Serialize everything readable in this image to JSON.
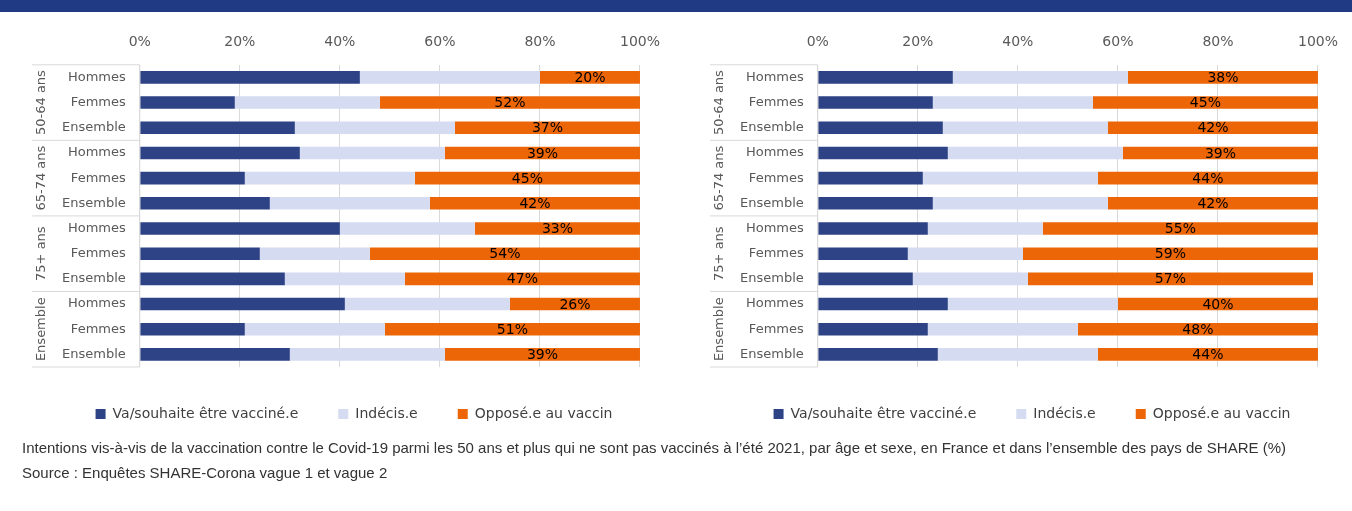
{
  "chart_data": [
    {
      "type": "bar",
      "orientation": "horizontal",
      "stacked": true,
      "grid": "x",
      "legend": "bottom",
      "categories": [
        "Hommes",
        "Femmes",
        "Ensemble",
        "Hommes",
        "Femmes",
        "Ensemble",
        "Hommes",
        "Femmes",
        "Ensemble",
        "Hommes",
        "Femmes",
        "Ensemble"
      ],
      "annotations": [
        "50-64 ans",
        "65-74 ans",
        "75+ ans",
        "Ensemble"
      ],
      "xlim": [
        0,
        100
      ],
      "xticks": [
        {
          "value": 0,
          "label": "0%"
        },
        {
          "value": 20,
          "label": "20%"
        },
        {
          "value": 40,
          "label": "40%"
        },
        {
          "value": 60,
          "label": "60%"
        },
        {
          "value": 80,
          "label": "80%"
        },
        {
          "value": 100,
          "label": "100%"
        }
      ],
      "series": [
        {
          "name": "Va/souhaite être vacciné.e",
          "color": "#2e4286",
          "values": [
            44,
            19,
            31,
            32,
            21,
            26,
            40,
            24,
            29,
            41,
            21,
            30
          ]
        },
        {
          "name": "Indécis.e",
          "color": "#d5dbf0",
          "values": [
            36,
            29,
            32,
            29,
            34,
            32,
            27,
            22,
            24,
            33,
            28,
            31
          ]
        },
        {
          "name": "Opposé.e au vaccin",
          "color": "#ec6608",
          "values": [
            20,
            52,
            37,
            39,
            45,
            42,
            33,
            54,
            47,
            26,
            51,
            39
          ],
          "value_labels": [
            "20%",
            "52%",
            "37%",
            "39%",
            "45%",
            "42%",
            "33%",
            "54%",
            "47%",
            "26%",
            "51%",
            "39%"
          ]
        }
      ]
    },
    {
      "type": "bar",
      "orientation": "horizontal",
      "stacked": true,
      "grid": "x",
      "legend": "bottom",
      "categories": [
        "Hommes",
        "Femmes",
        "Ensemble",
        "Hommes",
        "Femmes",
        "Ensemble",
        "Hommes",
        "Femmes",
        "Ensemble",
        "Hommes",
        "Femmes",
        "Ensemble"
      ],
      "annotations": [
        "50-64 ans",
        "65-74 ans",
        "75+ ans",
        "Ensemble"
      ],
      "xlim": [
        0,
        100
      ],
      "xticks": [
        {
          "value": 0,
          "label": "0%"
        },
        {
          "value": 20,
          "label": "20%"
        },
        {
          "value": 40,
          "label": "40%"
        },
        {
          "value": 60,
          "label": "60%"
        },
        {
          "value": 80,
          "label": "80%"
        },
        {
          "value": 100,
          "label": "100%"
        }
      ],
      "series": [
        {
          "name": "Va/souhaite être vacciné.e",
          "color": "#2e4286",
          "values": [
            27,
            23,
            25,
            26,
            21,
            23,
            22,
            18,
            19,
            26,
            22,
            24
          ]
        },
        {
          "name": "Indécis.e",
          "color": "#d5dbf0",
          "values": [
            35,
            32,
            33,
            35,
            35,
            35,
            23,
            23,
            23,
            34,
            30,
            32
          ]
        },
        {
          "name": "Opposé.e au vaccin",
          "color": "#ec6608",
          "values": [
            38,
            45,
            42,
            39,
            44,
            42,
            55,
            59,
            57,
            40,
            48,
            44
          ],
          "value_labels": [
            "38%",
            "45%",
            "42%",
            "39%",
            "44%",
            "42%",
            "55%",
            "59%",
            "57%",
            "40%",
            "48%",
            "44%"
          ]
        }
      ]
    },
    {
      "type": "other",
      "annotations": [
        "Intentions vis-à-vis de la vaccination contre le Covid-19 parmi les 50 ans et plus qui ne sont pas vaccinés à l’été 2021, par âge et sexe, en France et dans l’ensemble des pays de SHARE (%)",
        "Source : Enquêtes SHARE-Corona vague 1 et vague 2"
      ]
    }
  ]
}
